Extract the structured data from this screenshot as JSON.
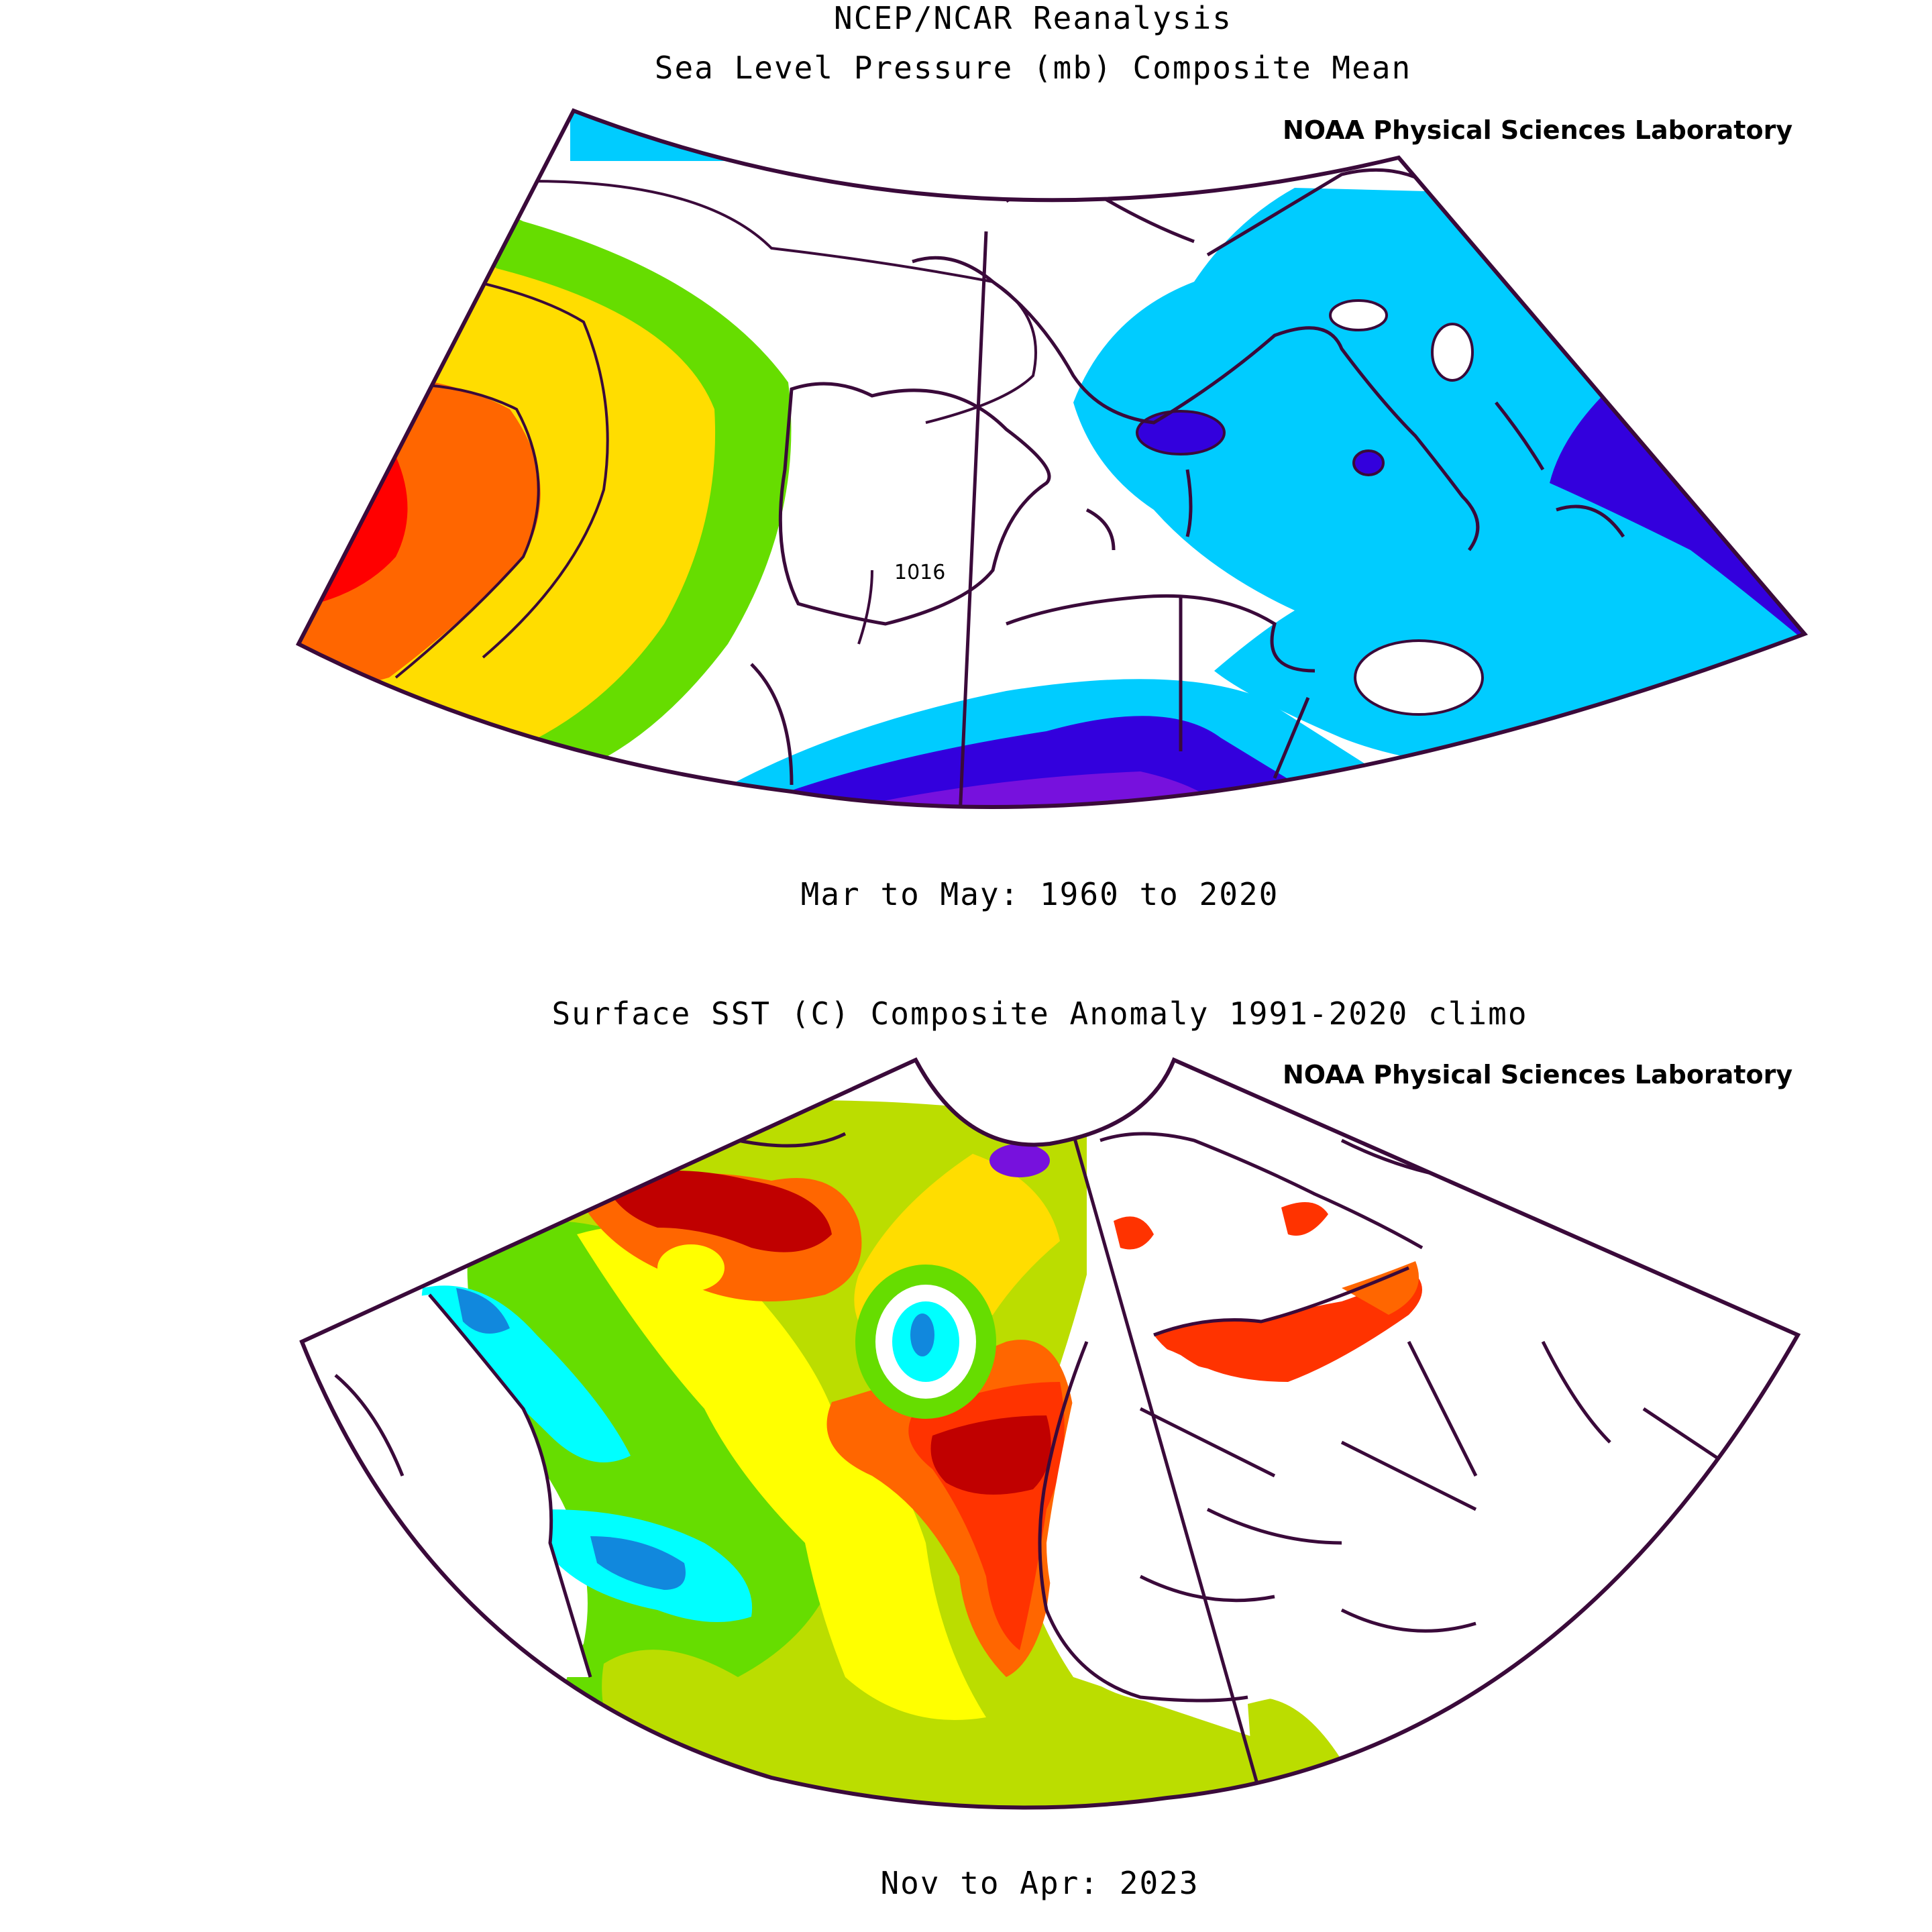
{
  "top_panel": {
    "title_line1": "NCEP/NCAR Reanalysis",
    "title_line2": "Sea Level Pressure (mb) Composite Mean",
    "credit": "NOAA Physical Sciences Laboratory",
    "contour_label": "1016",
    "period": "Mar to May: 1960 to 2020"
  },
  "bottom_panel": {
    "title": "Surface SST (C) Composite Anomaly 1991-2020 climo",
    "credit": "NOAA Physical Sciences Laboratory",
    "period": "Nov to Apr: 2023"
  },
  "colors": {
    "outline": "#3a0a3a",
    "red": "#ff0000",
    "dark_red": "#c00000",
    "orange": "#ff6600",
    "orange_red": "#ff3300",
    "yellow": "#ffdd00",
    "bright_yellow": "#ffff00",
    "yellow_green": "#bbdd00",
    "green": "#66dd00",
    "light_blue": "#00ccff",
    "cyan": "#00ffff",
    "mid_blue": "#1188dd",
    "dark_blue": "#3300dd",
    "violet": "#7711dd"
  }
}
